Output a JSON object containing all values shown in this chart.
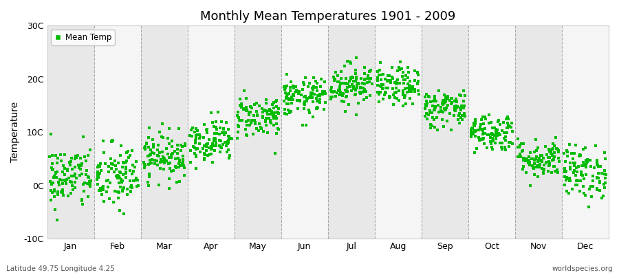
{
  "title": "Monthly Mean Temperatures 1901 - 2009",
  "ylabel": "Temperature",
  "bottom_left_label": "Latitude 49.75 Longitude 4.25",
  "bottom_right_label": "worldspecies.org",
  "ylim": [
    -10,
    30
  ],
  "ytick_labels": [
    "-10C",
    "0C",
    "10C",
    "20C",
    "30C"
  ],
  "ytick_values": [
    -10,
    0,
    10,
    20,
    30
  ],
  "months": [
    "Jan",
    "Feb",
    "Mar",
    "Apr",
    "May",
    "Jun",
    "Jul",
    "Aug",
    "Sep",
    "Oct",
    "Nov",
    "Dec"
  ],
  "marker_color": "#00bb00",
  "marker": "s",
  "marker_size": 2.5,
  "legend_label": "Mean Temp",
  "background_color": "#ffffff",
  "band_colors": [
    "#e8e8e8",
    "#f5f5f5"
  ],
  "grid_color": "#999999",
  "years": 109,
  "mean_temps": [
    1.5,
    1.5,
    5.5,
    8.5,
    13.0,
    16.5,
    19.0,
    18.5,
    14.5,
    10.0,
    5.0,
    2.5
  ],
  "std_temps": [
    3.0,
    3.2,
    2.2,
    2.0,
    2.0,
    1.8,
    2.0,
    1.8,
    1.8,
    1.8,
    1.8,
    2.5
  ]
}
